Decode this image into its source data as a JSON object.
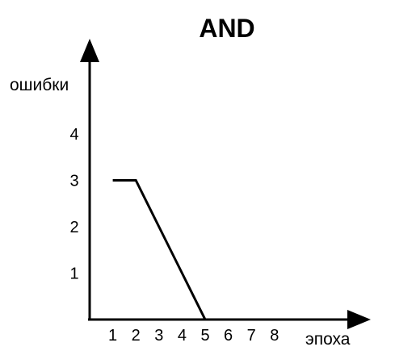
{
  "chart_data": {
    "type": "line",
    "title": "AND",
    "xlabel": "эпоха",
    "ylabel": "ошибки",
    "x_ticks": [
      "1",
      "2",
      "3",
      "4",
      "5",
      "6",
      "7",
      "8"
    ],
    "y_ticks": [
      "1",
      "2",
      "3",
      "4"
    ],
    "xlim": [
      0,
      11
    ],
    "ylim": [
      0,
      5.2
    ],
    "grid": false,
    "legend": "none",
    "colors": {
      "line": "#000000",
      "axes": "#000000"
    },
    "series": [
      {
        "x": [
          1,
          2,
          3,
          4,
          5,
          6,
          7,
          8
        ],
        "y": [
          3,
          3,
          2,
          1,
          0,
          0,
          0,
          0
        ]
      }
    ]
  }
}
